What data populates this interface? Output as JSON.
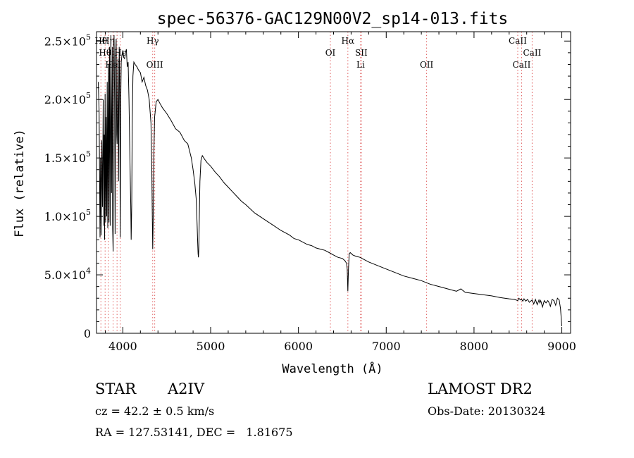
{
  "chart_data": {
    "type": "line",
    "title": "spec-56376-GAC129N00V2_sp14-013.fits",
    "xlabel": "Wavelength (Å)",
    "ylabel": "Flux (relative)",
    "xlim": [
      3700,
      9100
    ],
    "ylim": [
      0,
      258000
    ],
    "xticks": [
      {
        "value": 4000,
        "label": "4000"
      },
      {
        "value": 5000,
        "label": "5000"
      },
      {
        "value": 6000,
        "label": "6000"
      },
      {
        "value": 7000,
        "label": "7000"
      },
      {
        "value": 8000,
        "label": "8000"
      },
      {
        "value": 9000,
        "label": "9000"
      }
    ],
    "yticks": [
      {
        "value": 0,
        "label": "0"
      },
      {
        "value": 50000,
        "label": "5.0×10",
        "exp": "4"
      },
      {
        "value": 100000,
        "label": "1.0×10",
        "exp": "5"
      },
      {
        "value": 150000,
        "label": "1.5×10",
        "exp": "5"
      },
      {
        "value": 200000,
        "label": "2.0×10",
        "exp": "5"
      },
      {
        "value": 250000,
        "label": "2.5×10",
        "exp": "5"
      }
    ],
    "grid": false,
    "line_color": "#000000",
    "reference_line_color": "#e06060",
    "reference_lines": [
      {
        "x": 3750,
        "label": "Hθ",
        "row": 1
      },
      {
        "x": 3798,
        "label": "Hθ",
        "row": 2
      },
      {
        "x": 3835,
        "label": "Hη",
        "row": 1
      },
      {
        "x": 3889,
        "label": "HeI",
        "row": 3
      },
      {
        "x": 3934,
        "label": "",
        "row": 0
      },
      {
        "x": 3970,
        "label": "Hε",
        "row": 2
      },
      {
        "x": 4340,
        "label": "Hγ",
        "row": 1
      },
      {
        "x": 4363,
        "label": "OIII",
        "row": 3
      },
      {
        "x": 6364,
        "label": "OI",
        "row": 2
      },
      {
        "x": 6563,
        "label": "Hα",
        "row": 1
      },
      {
        "x": 6716,
        "label": "SII",
        "row": 2
      },
      {
        "x": 6708,
        "label": "Li",
        "row": 3
      },
      {
        "x": 7460,
        "label": "OII",
        "row": 3
      },
      {
        "x": 8498,
        "label": "CaII",
        "row": 1
      },
      {
        "x": 8542,
        "label": "CaII",
        "row": 3
      },
      {
        "x": 8662,
        "label": "CaII",
        "row": 2
      }
    ],
    "series": [
      {
        "x": [
          3720,
          3730,
          3740,
          3746,
          3752,
          3760,
          3768,
          3776,
          3784,
          3788,
          3792,
          3798,
          3804,
          3810,
          3816,
          3822,
          3828,
          3835,
          3842,
          3848,
          3856,
          3864,
          3872,
          3880,
          3884,
          3889,
          3894,
          3900,
          3906,
          3912,
          3918,
          3924,
          3930,
          3934,
          3938,
          3944,
          3950,
          3958,
          3964,
          3970,
          3976,
          3982,
          3990,
          4000,
          4010,
          4020,
          4030,
          4040,
          4050,
          4060,
          4070,
          4080,
          4090,
          4095,
          4101,
          4107,
          4115,
          4125,
          4140,
          4160,
          4180,
          4200,
          4220,
          4240,
          4260,
          4280,
          4300,
          4320,
          4330,
          4336,
          4340,
          4345,
          4352,
          4362,
          4380,
          4400,
          4420,
          4450,
          4500,
          4550,
          4600,
          4650,
          4700,
          4740,
          4780,
          4800,
          4820,
          4835,
          4845,
          4852,
          4857,
          4861,
          4865,
          4870,
          4878,
          4890,
          4905,
          4930,
          4960,
          5000,
          5050,
          5100,
          5150,
          5200,
          5250,
          5300,
          5350,
          5400,
          5500,
          5600,
          5700,
          5800,
          5900,
          5950,
          6000,
          6100,
          6150,
          6200,
          6250,
          6300,
          6350,
          6400,
          6450,
          6500,
          6530,
          6548,
          6556,
          6563,
          6570,
          6578,
          6590,
          6620,
          6650,
          6700,
          6800,
          6900,
          7000,
          7100,
          7200,
          7300,
          7400,
          7500,
          7600,
          7700,
          7800,
          7850,
          7900,
          8000,
          8100,
          8200,
          8300,
          8400,
          8460,
          8498,
          8510,
          8530,
          8542,
          8555,
          8570,
          8590,
          8610,
          8630,
          8662,
          8680,
          8700,
          8720,
          8740,
          8750,
          8760,
          8780,
          8800,
          8820,
          8840,
          8850,
          8870,
          8890,
          8910,
          8930,
          8950,
          8970,
          8985,
          9000
        ],
        "y": [
          215000,
          190000,
          82000,
          150000,
          84000,
          165000,
          108000,
          200000,
          92000,
          170000,
          80000,
          205000,
          95000,
          185000,
          100000,
          215000,
          90000,
          230000,
          95000,
          245000,
          92000,
          255000,
          120000,
          245000,
          90000,
          70000,
          230000,
          255000,
          200000,
          85000,
          240000,
          252000,
          170000,
          162000,
          180000,
          235000,
          130000,
          245000,
          220000,
          82000,
          200000,
          232000,
          238000,
          242000,
          236000,
          235000,
          240000,
          243000,
          228000,
          232000,
          200000,
          150000,
          110000,
          80000,
          110000,
          180000,
          220000,
          232000,
          230000,
          228000,
          225000,
          223000,
          215000,
          219000,
          212000,
          208000,
          200000,
          180000,
          140000,
          95000,
          72000,
          95000,
          150000,
          185000,
          198000,
          200000,
          197000,
          193000,
          188000,
          182000,
          175000,
          172000,
          165000,
          162000,
          150000,
          140000,
          128000,
          115000,
          95000,
          78000,
          68000,
          65000,
          72000,
          95000,
          130000,
          148000,
          152000,
          149000,
          146000,
          143000,
          138000,
          134000,
          129000,
          125000,
          121000,
          117000,
          113000,
          110000,
          103000,
          98000,
          93000,
          88000,
          84000,
          81000,
          80000,
          76000,
          75000,
          73000,
          72000,
          71000,
          69000,
          67000,
          65000,
          64000,
          62000,
          60000,
          55000,
          36000,
          55000,
          68000,
          69000,
          67000,
          66000,
          65000,
          61000,
          58000,
          55000,
          52000,
          49000,
          47000,
          45000,
          42000,
          40000,
          38000,
          36000,
          38000,
          35000,
          34000,
          33000,
          32000,
          30500,
          29500,
          29000,
          28000,
          30000,
          28500,
          29000,
          27500,
          29500,
          27500,
          29000,
          26500,
          28500,
          25000,
          29000,
          24500,
          28500,
          26000,
          28000,
          22500,
          28000,
          26000,
          28000,
          27000,
          23000,
          29000,
          28000,
          24000,
          30000,
          28500,
          21000,
          6000
        ]
      }
    ]
  },
  "info": {
    "class_label": "STAR",
    "subclass": "A2IV",
    "cz": "cz = 42.2 ± 0.5 km/s",
    "coords": "RA = 127.53141, DEC =   1.81675",
    "survey": "LAMOST DR2",
    "obs_date": "Obs-Date: 20130324"
  }
}
